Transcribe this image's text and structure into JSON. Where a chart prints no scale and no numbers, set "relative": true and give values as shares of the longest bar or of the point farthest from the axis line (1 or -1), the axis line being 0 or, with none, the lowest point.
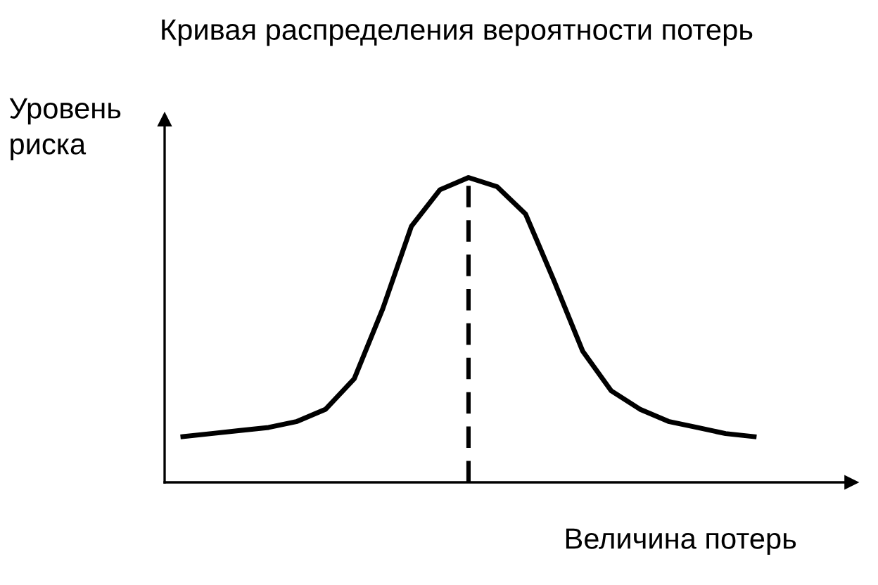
{
  "chart_data": {
    "type": "line",
    "title": "Кривая распределения вероятности потерь",
    "xlabel": "Величина потерь",
    "ylabel": "Уровень\nриска",
    "relative": true,
    "legend": false,
    "tick_labels": false,
    "marker": "none",
    "line_style": "solid",
    "categories": [
      null,
      null,
      null,
      null,
      null,
      null,
      null,
      null,
      null,
      null,
      null,
      null,
      null,
      null,
      null,
      null,
      null,
      null,
      null,
      null,
      null
    ],
    "series": [
      {
        "color": "#000000",
        "values": [
          0.15,
          0.16,
          0.17,
          0.18,
          0.2,
          0.24,
          0.34,
          0.57,
          0.84,
          0.96,
          1,
          0.97,
          0.88,
          0.66,
          0.43,
          0.3,
          0.24,
          0.2,
          0.18,
          0.16,
          0.15
        ]
      }
    ]
  }
}
